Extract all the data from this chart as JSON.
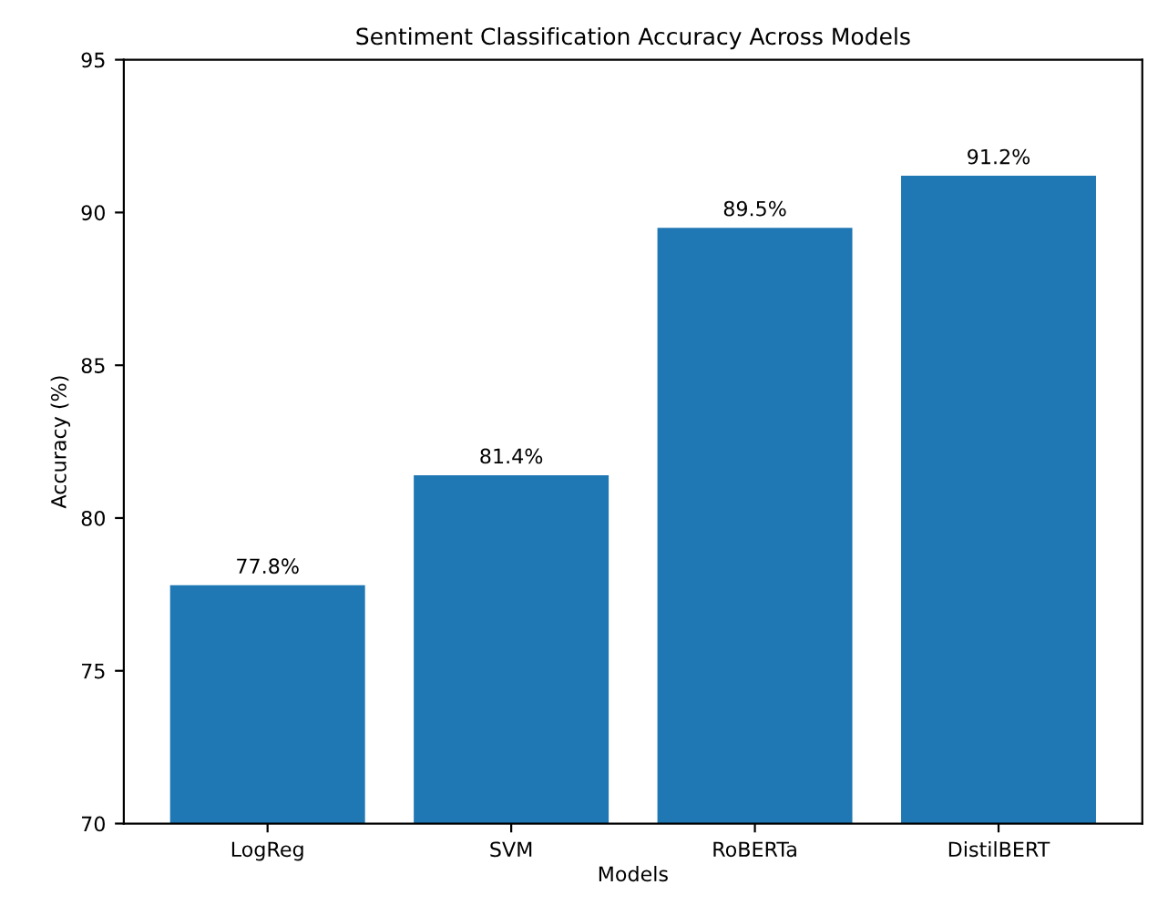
{
  "chart_data": {
    "type": "bar",
    "title": "Sentiment Classification Accuracy Across Models",
    "xlabel": "Models",
    "ylabel": "Accuracy (%)",
    "categories": [
      "LogReg",
      "SVM",
      "RoBERTa",
      "DistilBERT"
    ],
    "values": [
      77.8,
      81.4,
      89.5,
      91.2
    ],
    "value_labels": [
      "77.8%",
      "81.4%",
      "89.5%",
      "91.2%"
    ],
    "color": "#1f77b4",
    "ylim": [
      70,
      95
    ],
    "yticks": [
      70,
      75,
      80,
      85,
      90,
      95
    ],
    "grid": false,
    "legend": false
  }
}
